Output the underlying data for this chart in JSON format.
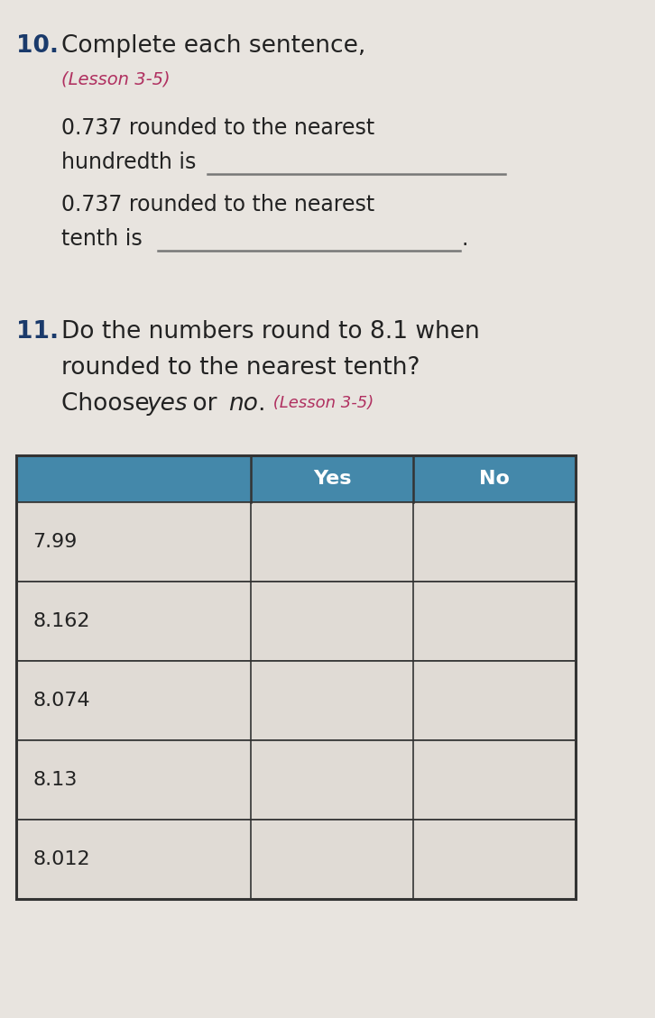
{
  "background_color": "#e8e4df",
  "q10_number": "10.",
  "q10_number_color": "#1a3a6b",
  "q10_title": "Complete each sentence,",
  "q10_title_color": "#222222",
  "q10_lesson": "(Lesson 3-5)",
  "q10_lesson_color": "#b03060",
  "q10_line1": "0.737 rounded to the nearest",
  "q10_line2": "hundredth is",
  "q10_line3": "0.737 rounded to the nearest",
  "q10_line4": "tenth is",
  "q10_text_color": "#222222",
  "q11_number": "11.",
  "q11_number_color": "#1a3a6b",
  "q11_line1": "Do the numbers round to 8.1 when",
  "q11_line2": "rounded to the nearest tenth?",
  "q11_choose": "Choose ",
  "q11_yes": "yes",
  "q11_or": " or ",
  "q11_no": "no",
  "q11_dot": ".",
  "q11_lesson": " (Lesson 3-5)",
  "q11_text_color": "#222222",
  "q11_lesson_color": "#b03060",
  "table_header_bg": "#4488aa",
  "table_header_text": "#ffffff",
  "table_col_headers": [
    "Yes",
    "No"
  ],
  "table_rows": [
    "7.99",
    "8.162",
    "8.074",
    "8.13",
    "8.012"
  ],
  "table_border_color": "#333333",
  "table_row_bg": "#e0dbd5"
}
